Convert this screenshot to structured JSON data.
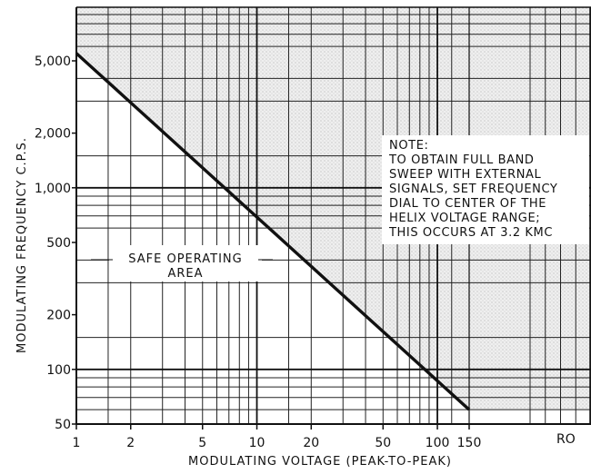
{
  "chart_data": {
    "type": "line",
    "title": "",
    "xlabel": "MODULATING VOLTAGE (PEAK-TO-PEAK)",
    "ylabel": "MODULATING FREQUENCY C.P.S.",
    "x_scale": "log",
    "y_scale": "log",
    "xlim": [
      1,
      150
    ],
    "ylim": [
      50,
      10000
    ],
    "x_ticks": [
      1,
      2,
      5,
      10,
      20,
      50,
      100,
      150
    ],
    "x_tick_labels": [
      "1",
      "2",
      "5",
      "10",
      "20",
      "50",
      "100",
      "150"
    ],
    "y_ticks": [
      50,
      100,
      200,
      500,
      1000,
      2000,
      5000
    ],
    "y_tick_labels": [
      "50",
      "100",
      "200",
      "500",
      "1,000",
      "2,000",
      "5,000"
    ],
    "grid": true,
    "series": [
      {
        "x": [
          1,
          150
        ],
        "y": [
          5500,
          60
        ]
      }
    ],
    "shaded_region": "above-line",
    "annotations": {
      "note": [
        "NOTE:",
        "TO OBTAIN FULL BAND",
        "SWEEP WITH EXTERNAL",
        "SIGNALS, SET FREQUENCY",
        "DIAL TO CENTER OF THE",
        "HELIX VOLTAGE RANGE;",
        "THIS OCCURS AT 3.2 KMC"
      ],
      "safe_area": [
        "SAFE OPERATING",
        "AREA"
      ],
      "corner_mark": "RO"
    }
  }
}
